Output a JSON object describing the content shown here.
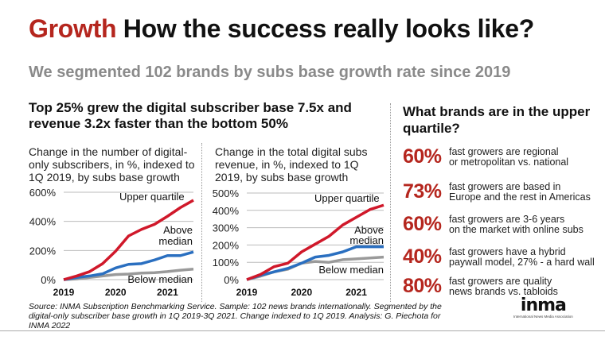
{
  "title": {
    "accent": "Growth",
    "rest": "How the success really looks like?"
  },
  "subtitle": "We segmented 102 brands by subs base growth rate since 2019",
  "headline": "Top 25% grew the digital subscriber base 7.5x and revenue 3.2x faster than the bottom 50%",
  "colors": {
    "accent": "#b5261e",
    "upper": "#d0182a",
    "above": "#2a6fc0",
    "below": "#9a9a9a"
  },
  "chart_data": [
    {
      "type": "line",
      "title": "Change in the number of digital-only subscribers, in %, indexed to 1Q 2019, by subs base growth",
      "xtick_labels": [
        "2019",
        "2020",
        "2021"
      ],
      "ytick_labels": [
        "0%",
        "200%",
        "400%",
        "600%"
      ],
      "ylim": [
        0,
        600
      ],
      "grid": true,
      "series": [
        {
          "name": "Upper quartile",
          "values": [
            0,
            25,
            55,
            110,
            195,
            300,
            345,
            380,
            435,
            495,
            545
          ]
        },
        {
          "name": "Above median",
          "values": [
            0,
            15,
            25,
            40,
            80,
            105,
            110,
            135,
            165,
            165,
            190
          ]
        },
        {
          "name": "Below median",
          "values": [
            0,
            5,
            15,
            25,
            35,
            38,
            45,
            48,
            55,
            65,
            72
          ]
        }
      ]
    },
    {
      "type": "line",
      "title": "Change in the total digital subs revenue, in %, indexed to 1Q 2019, by subs base growth",
      "xtick_labels": [
        "2019",
        "2020",
        "2021"
      ],
      "ytick_labels": [
        "0%",
        "100%",
        "200%",
        "300%",
        "400%",
        "500%"
      ],
      "ylim": [
        0,
        500
      ],
      "grid": true,
      "series": [
        {
          "name": "Upper quartile",
          "values": [
            0,
            30,
            75,
            95,
            160,
            205,
            250,
            315,
            360,
            405,
            430
          ]
        },
        {
          "name": "Above median",
          "values": [
            0,
            25,
            45,
            65,
            95,
            130,
            140,
            160,
            190,
            190,
            190
          ]
        },
        {
          "name": "Below median",
          "values": [
            0,
            20,
            45,
            60,
            95,
            105,
            100,
            115,
            120,
            125,
            130
          ]
        }
      ]
    }
  ],
  "right": {
    "heading": "What brands are in the upper quartile?",
    "stats": [
      {
        "pct": "60%",
        "text1": "fast growers are regional",
        "text2": "or metropolitan vs. national"
      },
      {
        "pct": "73%",
        "text1": "fast growers are based in",
        "text2": "Europe and the rest in Americas"
      },
      {
        "pct": "60%",
        "text1": "fast growers are 3-6 years",
        "text2": "on the market with online subs"
      },
      {
        "pct": "40%",
        "text1": "fast growers have a hybrid",
        "text2": "paywall model, 27% - a hard wall"
      },
      {
        "pct": "80%",
        "text1": "fast growers are quality",
        "text2": "news brands vs. tabloids"
      }
    ]
  },
  "source": "Source: INMA Subscription Benchmarking Service. Sample: 102 news brands internationally. Segmented by the digital-only subscriber base growth in 1Q 2019-3Q 2021. Change indexed to 1Q 2019. Analysis: G. Piechota for INMA 2022",
  "logo": {
    "word": "inma",
    "sub": "International News Media Association"
  }
}
